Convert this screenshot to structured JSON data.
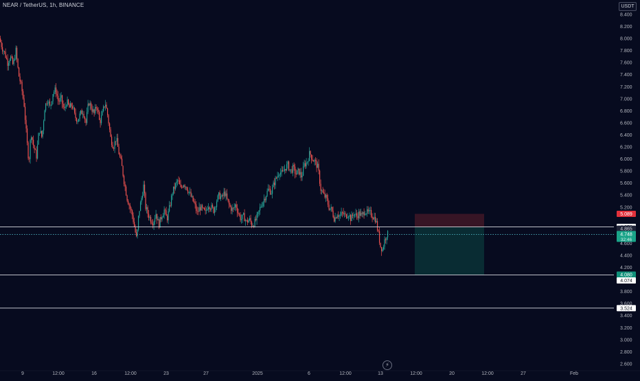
{
  "header": {
    "symbol": "NEAR / TetherUS, 1h, BINANCE"
  },
  "price_axis": {
    "currency": "USDT",
    "ticks": [
      "8.400",
      "8.200",
      "8.000",
      "7.800",
      "7.600",
      "7.400",
      "7.200",
      "7.000",
      "6.800",
      "6.600",
      "6.400",
      "6.200",
      "6.000",
      "5.800",
      "5.600",
      "5.400",
      "5.200",
      "4.600",
      "4.400",
      "4.200",
      "3.800",
      "3.600",
      "3.400",
      "3.200",
      "3.000",
      "2.800",
      "2.600"
    ]
  },
  "time_axis": {
    "labels": [
      "9",
      "12:00",
      "16",
      "12:00",
      "23",
      "27",
      "2025",
      "6",
      "12:00",
      "13",
      "12:00",
      "20",
      "12:00",
      "27",
      "Feb"
    ]
  },
  "colors": {
    "background": "#070b1f",
    "up": "#26a69a",
    "down": "#ef5350",
    "stop_zone": "#3a1626",
    "target_zone": "#0a2e35",
    "stop_label": "#e2313b",
    "target_label": "#10907a",
    "current_label": "#1aa489",
    "current_line": "#4fb7c4"
  },
  "chart_data": {
    "type": "candlestick",
    "symbol": "NEAR / TetherUS",
    "interval": "1h",
    "exchange": "BINANCE",
    "y_unit": "USDT",
    "ylim": [
      2.5,
      8.5
    ],
    "grid": false,
    "price_path": [
      [
        0,
        8.0
      ],
      [
        4,
        7.85
      ],
      [
        8,
        7.75
      ],
      [
        12,
        7.6
      ],
      [
        16,
        7.7
      ],
      [
        20,
        7.55
      ],
      [
        24,
        7.8
      ],
      [
        28,
        7.4
      ],
      [
        32,
        7.2
      ],
      [
        36,
        6.9
      ],
      [
        40,
        6.3
      ],
      [
        43,
        5.95
      ],
      [
        46,
        6.45
      ],
      [
        50,
        6.2
      ],
      [
        54,
        6.05
      ],
      [
        58,
        6.5
      ],
      [
        62,
        6.35
      ],
      [
        66,
        6.85
      ],
      [
        70,
        7.0
      ],
      [
        74,
        6.85
      ],
      [
        78,
        7.1
      ],
      [
        82,
        7.15
      ],
      [
        86,
        6.95
      ],
      [
        90,
        7.0
      ],
      [
        94,
        6.8
      ],
      [
        98,
        6.95
      ],
      [
        102,
        6.85
      ],
      [
        106,
        6.9
      ],
      [
        110,
        6.7
      ],
      [
        114,
        6.65
      ],
      [
        118,
        6.75
      ],
      [
        122,
        6.8
      ],
      [
        126,
        6.6
      ],
      [
        130,
        6.95
      ],
      [
        134,
        6.85
      ],
      [
        138,
        6.75
      ],
      [
        142,
        6.9
      ],
      [
        146,
        6.6
      ],
      [
        150,
        6.75
      ],
      [
        154,
        6.95
      ],
      [
        158,
        6.7
      ],
      [
        162,
        6.35
      ],
      [
        166,
        6.2
      ],
      [
        170,
        6.35
      ],
      [
        174,
        6.1
      ],
      [
        178,
        5.9
      ],
      [
        182,
        5.6
      ],
      [
        186,
        5.35
      ],
      [
        190,
        5.2
      ],
      [
        194,
        5.05
      ],
      [
        197,
        4.85
      ],
      [
        200,
        4.65
      ],
      [
        203,
        5.1
      ],
      [
        207,
        5.35
      ],
      [
        210,
        5.55
      ],
      [
        213,
        5.2
      ],
      [
        216,
        5.1
      ],
      [
        220,
        5.0
      ],
      [
        224,
        4.95
      ],
      [
        228,
        5.1
      ],
      [
        232,
        4.9
      ],
      [
        236,
        5.05
      ],
      [
        240,
        5.15
      ],
      [
        244,
        5.0
      ],
      [
        248,
        5.2
      ],
      [
        252,
        5.45
      ],
      [
        256,
        5.55
      ],
      [
        260,
        5.65
      ],
      [
        264,
        5.5
      ],
      [
        268,
        5.6
      ],
      [
        272,
        5.55
      ],
      [
        276,
        5.45
      ],
      [
        280,
        5.35
      ],
      [
        284,
        5.25
      ],
      [
        288,
        5.1
      ],
      [
        292,
        5.2
      ],
      [
        296,
        5.15
      ],
      [
        300,
        5.1
      ],
      [
        304,
        5.25
      ],
      [
        308,
        5.2
      ],
      [
        312,
        5.15
      ],
      [
        316,
        5.3
      ],
      [
        320,
        5.4
      ],
      [
        324,
        5.35
      ],
      [
        328,
        5.45
      ],
      [
        332,
        5.3
      ],
      [
        336,
        5.2
      ],
      [
        340,
        5.15
      ],
      [
        344,
        5.25
      ],
      [
        348,
        5.1
      ],
      [
        352,
        5.0
      ],
      [
        356,
        5.05
      ],
      [
        360,
        4.95
      ],
      [
        364,
        5.0
      ],
      [
        368,
        4.9
      ],
      [
        372,
        4.95
      ],
      [
        376,
        5.05
      ],
      [
        380,
        5.2
      ],
      [
        384,
        5.3
      ],
      [
        388,
        5.4
      ],
      [
        392,
        5.5
      ],
      [
        396,
        5.45
      ],
      [
        400,
        5.6
      ],
      [
        404,
        5.7
      ],
      [
        408,
        5.8
      ],
      [
        412,
        5.75
      ],
      [
        416,
        5.85
      ],
      [
        420,
        5.9
      ],
      [
        424,
        5.8
      ],
      [
        428,
        5.85
      ],
      [
        432,
        5.75
      ],
      [
        436,
        5.8
      ],
      [
        440,
        5.7
      ],
      [
        444,
        5.9
      ],
      [
        448,
        5.95
      ],
      [
        452,
        6.1
      ],
      [
        456,
        6.0
      ],
      [
        460,
        5.95
      ],
      [
        464,
        5.85
      ],
      [
        468,
        5.5
      ],
      [
        472,
        5.4
      ],
      [
        476,
        5.35
      ],
      [
        480,
        5.2
      ],
      [
        484,
        5.15
      ],
      [
        488,
        5.0
      ],
      [
        492,
        5.1
      ],
      [
        496,
        5.05
      ],
      [
        500,
        5.1
      ],
      [
        504,
        5.05
      ],
      [
        508,
        5.1
      ],
      [
        512,
        5.0
      ],
      [
        516,
        5.1
      ],
      [
        520,
        5.05
      ],
      [
        524,
        5.1
      ],
      [
        528,
        5.05
      ],
      [
        532,
        5.15
      ],
      [
        536,
        5.1
      ],
      [
        540,
        5.1
      ],
      [
        544,
        5.05
      ],
      [
        548,
        5.0
      ],
      [
        552,
        4.75
      ],
      [
        555,
        4.55
      ],
      [
        558,
        4.5
      ],
      [
        561,
        4.65
      ],
      [
        564,
        4.75
      ]
    ],
    "levels": [
      {
        "price": "4.872",
        "role": "horizontal-line"
      },
      {
        "price": "4.074",
        "role": "horizontal-line"
      },
      {
        "price": "3.524",
        "role": "horizontal-line"
      }
    ],
    "position": {
      "type": "short",
      "stop": "5.089",
      "entry": "4.865",
      "target": "4.080"
    },
    "current": {
      "price": "4.748",
      "countdown": "32:46"
    }
  }
}
